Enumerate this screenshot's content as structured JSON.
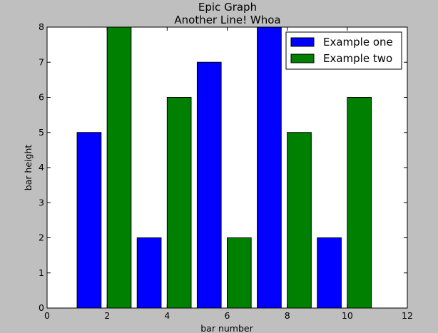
{
  "chart_data": {
    "type": "bar",
    "title": "Epic Graph",
    "subtitle": "Another Line! Whoa",
    "xlabel": "bar number",
    "ylabel": "bar height",
    "xlim": [
      0,
      12
    ],
    "ylim": [
      0,
      8
    ],
    "xticks": [
      0,
      2,
      4,
      6,
      8,
      10,
      12
    ],
    "yticks": [
      0,
      1,
      2,
      3,
      4,
      5,
      6,
      7,
      8
    ],
    "bar_width": 0.8,
    "grid": false,
    "legend_position": "top-right",
    "series": [
      {
        "name": "Example one",
        "color": "#0000ff",
        "x": [
          1,
          3,
          5,
          7,
          9
        ],
        "values": [
          5,
          2,
          7,
          8,
          2
        ]
      },
      {
        "name": "Example two",
        "color": "#008000",
        "x": [
          2,
          4,
          6,
          8,
          10
        ],
        "values": [
          8,
          6,
          2,
          5,
          6
        ]
      }
    ]
  }
}
